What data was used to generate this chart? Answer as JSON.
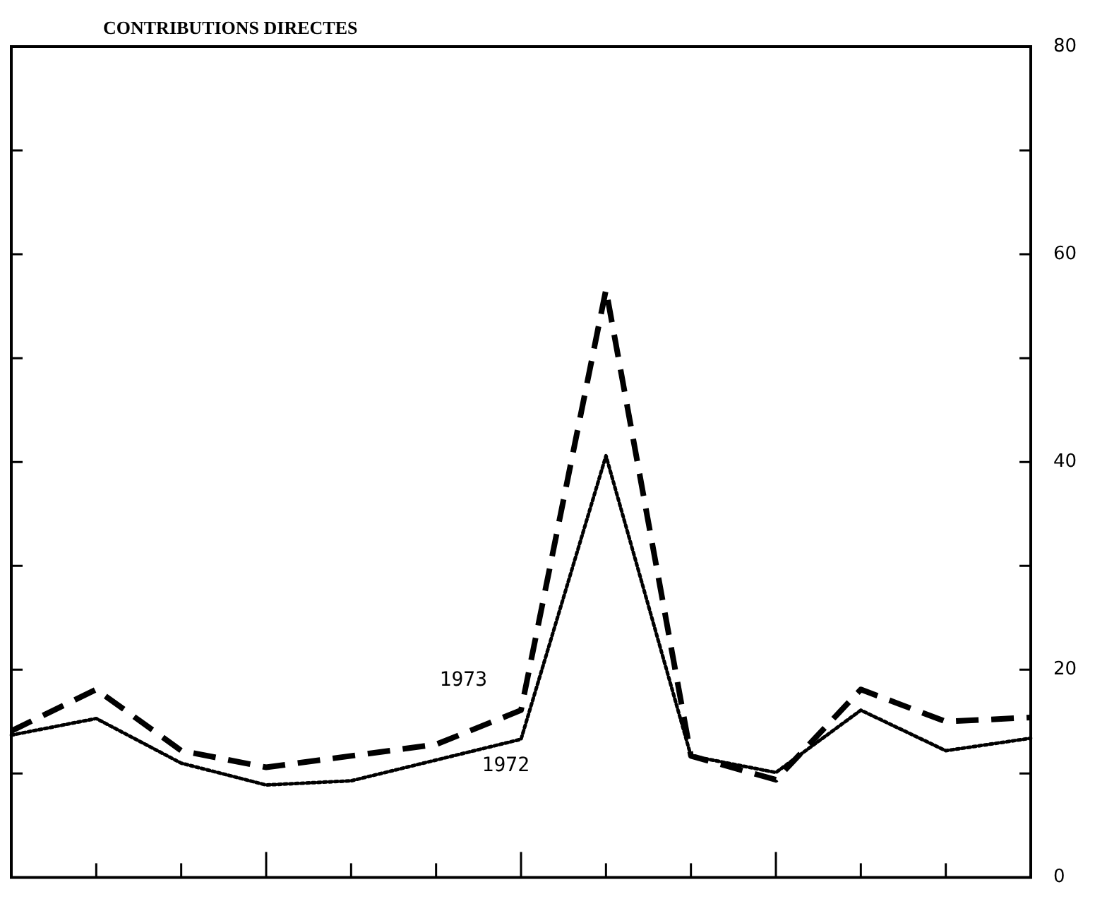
{
  "chart_data": {
    "type": "line",
    "title": "CONTRIBUTIONS DIRECTES",
    "categories": [
      null,
      null,
      null,
      null,
      null,
      null,
      null,
      null,
      null,
      null,
      null,
      null,
      null
    ],
    "series": [
      {
        "name": "1973",
        "color": "#000000",
        "line_style": "dashed",
        "values": [
          14.1,
          18.1,
          12.2,
          10.6,
          11.7,
          12.8,
          16.1,
          56.6,
          11.7,
          9.4,
          18.1,
          15.0,
          15.4
        ]
      },
      {
        "name": "1972",
        "color": "#000000",
        "line_style": "dotted",
        "values": [
          13.7,
          15.3,
          11.0,
          8.9,
          9.3,
          11.3,
          13.3,
          40.6,
          11.7,
          10.1,
          16.1,
          12.2,
          13.4
        ]
      }
    ],
    "ylim": [
      0,
      80
    ],
    "yticks": [
      0,
      {
        "value": 10,
        "label": null
      },
      20,
      {
        "value": 30,
        "label": null
      },
      40,
      {
        "value": 50,
        "label": null
      },
      60,
      {
        "value": 70,
        "label": null
      },
      80
    ],
    "grid": false,
    "legend": false,
    "marker": "none"
  }
}
